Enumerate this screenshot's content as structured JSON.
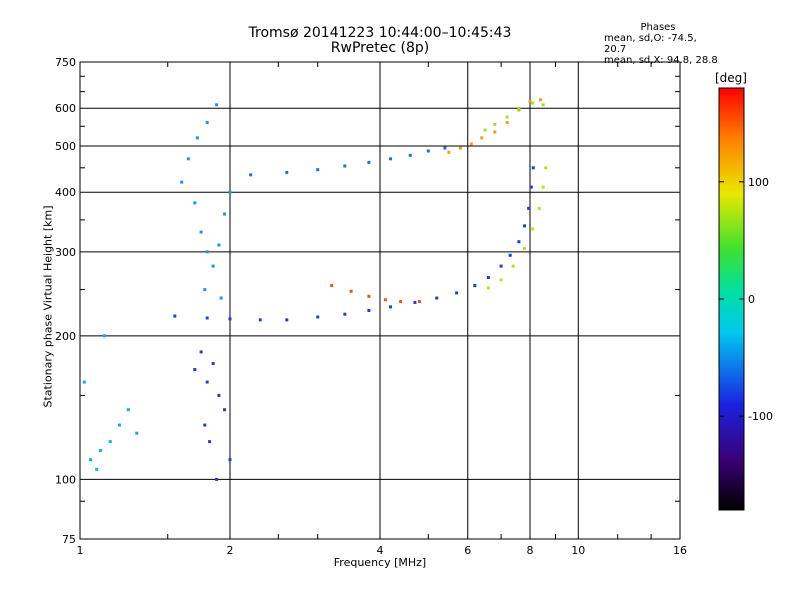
{
  "header": {
    "title_line1": "Tromsø 20141223 10:44:00–10:45:43",
    "title_line2": "RwPretec (8p)"
  },
  "stats": {
    "heading": "Phases",
    "line_o": "mean, sd,O: -74.5, 20.7",
    "line_x": "mean, sd,X:  94.8, 28.8"
  },
  "colorbar": {
    "unit": "[deg]",
    "ticks": [
      100,
      0,
      -100
    ],
    "range": [
      -180,
      180
    ]
  },
  "chart_data": {
    "type": "scatter",
    "xlabel": "Frequency [MHz]",
    "ylabel": "Stationary phase Virtual Height [km]",
    "x_scale": "log",
    "y_scale": "log",
    "xlim": [
      1,
      16
    ],
    "ylim": [
      75,
      750
    ],
    "x_ticks": [
      1,
      2,
      4,
      6,
      8,
      10,
      16
    ],
    "y_ticks": [
      75,
      100,
      200,
      300,
      400,
      500,
      600,
      750
    ],
    "grid": true,
    "colormap": "rainbow",
    "series": [
      {
        "color": "#1f3fd0",
        "points": [
          [
            1.55,
            220
          ],
          [
            1.8,
            218
          ],
          [
            2.0,
            217
          ],
          [
            2.3,
            216
          ],
          [
            2.6,
            216
          ],
          [
            3.0,
            219
          ],
          [
            3.4,
            222
          ],
          [
            3.8,
            226
          ],
          [
            4.2,
            230
          ],
          [
            4.7,
            235
          ],
          [
            5.2,
            240
          ],
          [
            5.7,
            246
          ],
          [
            6.2,
            255
          ],
          [
            6.6,
            265
          ],
          [
            7.0,
            280
          ],
          [
            7.3,
            295
          ],
          [
            7.6,
            315
          ],
          [
            7.8,
            340
          ],
          [
            7.95,
            370
          ],
          [
            8.05,
            410
          ],
          [
            8.12,
            450
          ]
        ]
      },
      {
        "color": "#e05a18",
        "points": [
          [
            3.2,
            255
          ],
          [
            3.5,
            248
          ],
          [
            3.8,
            242
          ],
          [
            4.1,
            238
          ],
          [
            4.4,
            236
          ],
          [
            4.8,
            236
          ]
        ]
      },
      {
        "color": "#a8e820",
        "points": [
          [
            6.6,
            252
          ],
          [
            7.0,
            262
          ],
          [
            7.4,
            280
          ],
          [
            7.8,
            305
          ],
          [
            8.1,
            335
          ],
          [
            8.35,
            370
          ],
          [
            8.5,
            410
          ],
          [
            8.6,
            450
          ]
        ]
      },
      {
        "color": "#1e6fe0",
        "points": [
          [
            2.2,
            435
          ],
          [
            2.6,
            440
          ],
          [
            3.0,
            446
          ],
          [
            3.4,
            454
          ],
          [
            3.8,
            462
          ],
          [
            4.2,
            470
          ],
          [
            4.6,
            478
          ],
          [
            5.0,
            488
          ],
          [
            5.4,
            495
          ]
        ]
      },
      {
        "color": "#e8a020",
        "points": [
          [
            5.5,
            485
          ],
          [
            5.8,
            495
          ],
          [
            6.1,
            505
          ],
          [
            6.4,
            520
          ],
          [
            6.8,
            535
          ],
          [
            7.2,
            560
          ],
          [
            7.6,
            595
          ],
          [
            8.0,
            620
          ],
          [
            8.4,
            625
          ]
        ]
      },
      {
        "color": "#9be03a",
        "points": [
          [
            6.5,
            540
          ],
          [
            6.8,
            555
          ],
          [
            7.2,
            575
          ],
          [
            7.6,
            600
          ],
          [
            8.1,
            615
          ],
          [
            8.5,
            610
          ]
        ]
      },
      {
        "color": "#2a8ef0",
        "points": [
          [
            1.6,
            420
          ],
          [
            1.7,
            380
          ],
          [
            1.75,
            330
          ],
          [
            1.8,
            300
          ],
          [
            1.85,
            280
          ],
          [
            1.9,
            310
          ],
          [
            1.95,
            360
          ],
          [
            2.0,
            400
          ],
          [
            1.72,
            520
          ],
          [
            1.8,
            560
          ],
          [
            1.88,
            610
          ],
          [
            1.65,
            470
          ],
          [
            1.78,
            250
          ],
          [
            1.92,
            240
          ]
        ]
      },
      {
        "color": "#19a9e6",
        "points": [
          [
            1.05,
            110
          ],
          [
            1.1,
            115
          ],
          [
            1.15,
            120
          ],
          [
            1.2,
            130
          ],
          [
            1.08,
            105
          ],
          [
            1.25,
            140
          ],
          [
            1.3,
            125
          ],
          [
            1.02,
            160
          ],
          [
            1.12,
            200
          ]
        ]
      },
      {
        "color": "#2a3fc0",
        "points": [
          [
            1.7,
            170
          ],
          [
            1.8,
            160
          ],
          [
            1.85,
            175
          ],
          [
            1.9,
            150
          ],
          [
            1.78,
            130
          ],
          [
            1.82,
            120
          ],
          [
            1.95,
            140
          ],
          [
            2.0,
            110
          ],
          [
            1.88,
            100
          ],
          [
            1.75,
            185
          ]
        ]
      }
    ]
  }
}
